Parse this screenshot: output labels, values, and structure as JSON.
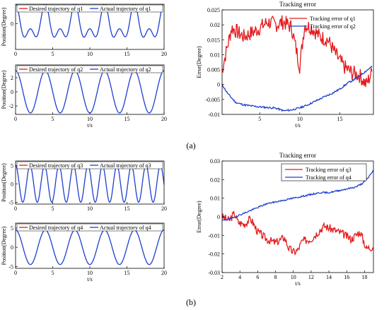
{
  "colors": {
    "desired": "#e41a1c",
    "actual": "#1f3fd0",
    "error_a": "#e41a1c",
    "error_b": "#1f3fd0"
  },
  "labels": {
    "a": "(a)",
    "b": "(b)"
  },
  "chart_data": [
    {
      "id": "a_q1",
      "type": "line",
      "xlabel": "",
      "ylabel": "Position(Degree)",
      "xlim": [
        0,
        20
      ],
      "ylim": [
        -6,
        4.5
      ],
      "xticks": [
        "0",
        "5",
        "10",
        "15",
        "20"
      ],
      "yticks": [
        {
          "v": 0,
          "t": "0"
        }
      ],
      "legend_position": "top",
      "series": [
        {
          "name": "Desired trajectory of q1",
          "color": "#e41a1c",
          "fn": "q1",
          "visible": false
        },
        {
          "name": "Actual trajectory of q1",
          "color": "#1f3fd0",
          "fn": "q1",
          "visible": true
        }
      ]
    },
    {
      "id": "a_q2",
      "type": "line",
      "xlabel": "t/s",
      "ylabel": "Position(Degree)",
      "xlim": [
        0,
        20
      ],
      "ylim": [
        -3.2,
        3.8
      ],
      "xticks": [
        "0",
        "5",
        "10",
        "15",
        "20"
      ],
      "yticks": [
        {
          "v": -2,
          "t": "-2"
        },
        {
          "v": 0,
          "t": "0"
        },
        {
          "v": 2,
          "t": "2"
        }
      ],
      "legend_position": "top",
      "series": [
        {
          "name": "Desired trajectory of q2",
          "color": "#e41a1c",
          "fn": "q2",
          "visible": false
        },
        {
          "name": "Actual trajectory of q2",
          "color": "#1f3fd0",
          "fn": "q2",
          "visible": true
        }
      ]
    },
    {
      "id": "a_err",
      "type": "line",
      "title": "Tracking error",
      "xlabel": "t/s",
      "ylabel": "Error(Degree)",
      "xlim": [
        0.3,
        19.2
      ],
      "ylim": [
        -0.01,
        0.025
      ],
      "xticks_at": [
        5,
        10,
        15
      ],
      "yticks": [
        {
          "v": -0.01,
          "t": "-0.01"
        },
        {
          "v": -0.005,
          "t": "-0.005"
        },
        {
          "v": 0,
          "t": "0"
        },
        {
          "v": 0.005,
          "t": "0.005"
        },
        {
          "v": 0.01,
          "t": "0.01"
        },
        {
          "v": 0.015,
          "t": "0.015"
        },
        {
          "v": 0.02,
          "t": "0.02"
        },
        {
          "v": 0.025,
          "t": "0.025"
        }
      ],
      "legend_position": "top-right",
      "series": [
        {
          "name": "Tracking error of q1",
          "color": "#e41a1c",
          "x": [
            0.3,
            1.5,
            3,
            4.5,
            6,
            7,
            8,
            9,
            10,
            10.6,
            11.5,
            12.5,
            13.5,
            14.5,
            15.5,
            16.5,
            17.5,
            18.3,
            19
          ],
          "y": [
            0.005,
            0.019,
            0.016,
            0.018,
            0.021,
            0.02,
            0.021,
            0.019,
            0.006,
            0.02,
            0.019,
            0.016,
            0.015,
            0.01,
            0.006,
            0.004,
            0.003,
            0.0,
            0.004
          ],
          "noise": 0.0026,
          "seed": 7
        },
        {
          "name": "Tracking error of q2",
          "color": "#1f3fd0",
          "x": [
            0.3,
            1.0,
            2.0,
            3.0,
            4.0,
            5.0,
            6.0,
            7.0,
            8.0,
            9.0,
            10.0,
            11.0,
            12.0,
            13.0,
            14.0,
            15.0,
            16.0,
            17.0,
            18.0,
            19.0
          ],
          "y": [
            0.0,
            -0.003,
            -0.006,
            -0.0068,
            -0.0072,
            -0.0075,
            -0.0077,
            -0.0079,
            -0.0088,
            -0.0085,
            -0.0078,
            -0.0068,
            -0.0055,
            -0.0042,
            -0.003,
            -0.0015,
            0.0005,
            0.002,
            0.004,
            0.006
          ],
          "noise": 0.0003,
          "seed": 11
        }
      ]
    },
    {
      "id": "b_q3",
      "type": "line",
      "xlabel": "",
      "ylabel": "Position(Degree)",
      "xlim": [
        0,
        20
      ],
      "ylim": [
        -5.5,
        6.2
      ],
      "xticks": [
        "0",
        "5",
        "10",
        "15",
        "20"
      ],
      "yticks": [
        {
          "v": -5,
          "t": "-5"
        },
        {
          "v": 0,
          "t": "0"
        },
        {
          "v": 5,
          "t": "5"
        }
      ],
      "legend_position": "top",
      "series": [
        {
          "name": "Desired trajectory of q3",
          "color": "#e41a1c",
          "fn": "q3",
          "visible": false
        },
        {
          "name": "Actual trajectory of q3",
          "color": "#1f3fd0",
          "fn": "q3",
          "visible": true
        }
      ]
    },
    {
      "id": "b_q4",
      "type": "line",
      "xlabel": "t/s",
      "ylabel": "Position(Degree)",
      "xlim": [
        0,
        20
      ],
      "ylim": [
        -5.5,
        6.3
      ],
      "xticks": [
        "0",
        "5",
        "10",
        "15",
        "20"
      ],
      "yticks": [
        {
          "v": -5,
          "t": "-5"
        },
        {
          "v": 0,
          "t": "0"
        },
        {
          "v": 5,
          "t": "5"
        }
      ],
      "legend_position": "top",
      "series": [
        {
          "name": "Desired trajectory of q4",
          "color": "#e41a1c",
          "fn": "q4",
          "visible": false
        },
        {
          "name": "Actual trajectory of q4",
          "color": "#1f3fd0",
          "fn": "q4",
          "visible": true
        }
      ]
    },
    {
      "id": "b_err",
      "type": "line",
      "title": "Tracking error",
      "xlabel": "t/s",
      "ylabel": "Error(Degree)",
      "xlim": [
        2,
        19
      ],
      "ylim": [
        -0.03,
        0.03
      ],
      "xticks_at": [
        2,
        4,
        6,
        8,
        10,
        12,
        14,
        16,
        18
      ],
      "yticks": [
        {
          "v": -0.03,
          "t": "-0.03"
        },
        {
          "v": -0.02,
          "t": "-0.02"
        },
        {
          "v": -0.01,
          "t": "-0.01"
        },
        {
          "v": 0,
          "t": "0"
        },
        {
          "v": 0.01,
          "t": "0.01"
        },
        {
          "v": 0.02,
          "t": "0.02"
        },
        {
          "v": 0.03,
          "t": "0.03"
        }
      ],
      "legend_position": "top-right",
      "series": [
        {
          "name": "Tracking error of q3",
          "color": "#e41a1c",
          "x": [
            2,
            2.8,
            3.4,
            3.8,
            4.5,
            5.2,
            6,
            7,
            8,
            9,
            9.5,
            10,
            10.5,
            11,
            12,
            12.8,
            13.5,
            14.5,
            15.5,
            16.5,
            17.5,
            18.2,
            19
          ],
          "y": [
            0.0,
            -0.002,
            0.002,
            -0.003,
            -0.004,
            -0.001,
            -0.008,
            -0.012,
            -0.014,
            -0.011,
            -0.017,
            -0.019,
            -0.018,
            -0.013,
            -0.012,
            -0.008,
            -0.005,
            -0.007,
            -0.009,
            -0.012,
            -0.008,
            -0.017,
            -0.016
          ],
          "noise": 0.0022,
          "seed": 3
        },
        {
          "name": "Tracking error of q4",
          "color": "#1f3fd0",
          "x": [
            2,
            3,
            4,
            5,
            6,
            7,
            8,
            9,
            10,
            11,
            12,
            13,
            14,
            15,
            16,
            17,
            17.8,
            18.4,
            19
          ],
          "y": [
            -0.002,
            -0.001,
            0.001,
            0.003,
            0.005,
            0.007,
            0.008,
            0.009,
            0.01,
            0.011,
            0.012,
            0.013,
            0.013,
            0.014,
            0.015,
            0.016,
            0.018,
            0.021,
            0.025
          ],
          "noise": 0.0004,
          "seed": 19
        }
      ]
    }
  ]
}
